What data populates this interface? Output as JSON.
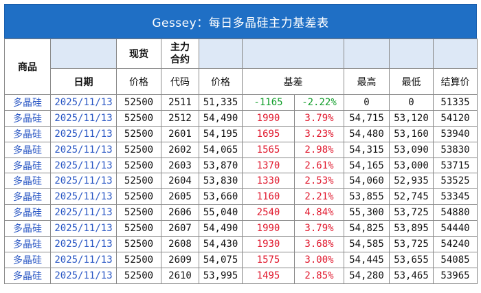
{
  "title": "Gessey：每日多晶硅主力基差表",
  "headers": {
    "commodity": "商品",
    "spot": "现货",
    "main_contract": "主力合约",
    "date": "日期",
    "spot_price": "价格",
    "code": "代码",
    "price": "价格",
    "basis": "基差",
    "high": "最高",
    "low": "最低",
    "settle": "结算价"
  },
  "rows": [
    {
      "commodity": "多晶硅",
      "date": "2025/11/13",
      "spot": "52500",
      "code": "2511",
      "price": "51,335",
      "basis": "-1165",
      "pct": "-2.22%",
      "high": "0",
      "low": "0",
      "settle": "51335",
      "sign": "neg"
    },
    {
      "commodity": "多晶硅",
      "date": "2025/11/13",
      "spot": "52500",
      "code": "2512",
      "price": "54,490",
      "basis": "1990",
      "pct": "3.79%",
      "high": "54,715",
      "low": "53,120",
      "settle": "54120",
      "sign": "pos"
    },
    {
      "commodity": "多晶硅",
      "date": "2025/11/13",
      "spot": "52500",
      "code": "2601",
      "price": "54,195",
      "basis": "1695",
      "pct": "3.23%",
      "high": "54,480",
      "low": "53,160",
      "settle": "53940",
      "sign": "pos"
    },
    {
      "commodity": "多晶硅",
      "date": "2025/11/13",
      "spot": "52500",
      "code": "2602",
      "price": "54,065",
      "basis": "1565",
      "pct": "2.98%",
      "high": "54,315",
      "low": "53,090",
      "settle": "53830",
      "sign": "pos"
    },
    {
      "commodity": "多晶硅",
      "date": "2025/11/13",
      "spot": "52500",
      "code": "2603",
      "price": "53,870",
      "basis": "1370",
      "pct": "2.61%",
      "high": "54,165",
      "low": "53,000",
      "settle": "53715",
      "sign": "pos"
    },
    {
      "commodity": "多晶硅",
      "date": "2025/11/13",
      "spot": "52500",
      "code": "2604",
      "price": "53,830",
      "basis": "1330",
      "pct": "2.53%",
      "high": "54,060",
      "low": "52,935",
      "settle": "53525",
      "sign": "pos"
    },
    {
      "commodity": "多晶硅",
      "date": "2025/11/13",
      "spot": "52500",
      "code": "2605",
      "price": "53,660",
      "basis": "1160",
      "pct": "2.21%",
      "high": "53,855",
      "low": "52,745",
      "settle": "53345",
      "sign": "pos"
    },
    {
      "commodity": "多晶硅",
      "date": "2025/11/13",
      "spot": "52500",
      "code": "2606",
      "price": "55,040",
      "basis": "2540",
      "pct": "4.84%",
      "high": "55,300",
      "low": "53,725",
      "settle": "54880",
      "sign": "pos"
    },
    {
      "commodity": "多晶硅",
      "date": "2025/11/13",
      "spot": "52500",
      "code": "2607",
      "price": "54,490",
      "basis": "1990",
      "pct": "3.79%",
      "high": "54,825",
      "low": "53,895",
      "settle": "54440",
      "sign": "pos"
    },
    {
      "commodity": "多晶硅",
      "date": "2025/11/13",
      "spot": "52500",
      "code": "2608",
      "price": "54,430",
      "basis": "1930",
      "pct": "3.68%",
      "high": "54,585",
      "low": "53,725",
      "settle": "54240",
      "sign": "pos"
    },
    {
      "commodity": "多晶硅",
      "date": "2025/11/13",
      "spot": "52500",
      "code": "2609",
      "price": "54,075",
      "basis": "1575",
      "pct": "3.00%",
      "high": "54,445",
      "low": "53,655",
      "settle": "54085",
      "sign": "pos"
    },
    {
      "commodity": "多晶硅",
      "date": "2025/11/13",
      "spot": "52500",
      "code": "2610",
      "price": "53,995",
      "basis": "1495",
      "pct": "2.85%",
      "high": "54,280",
      "low": "53,465",
      "settle": "53965",
      "sign": "pos"
    }
  ],
  "colors": {
    "title_bg": "#1f6fc5",
    "header_bg": "#dde8f6",
    "positive": "#e0162b",
    "negative": "#119e2a",
    "link_blue": "#2a57c4"
  }
}
